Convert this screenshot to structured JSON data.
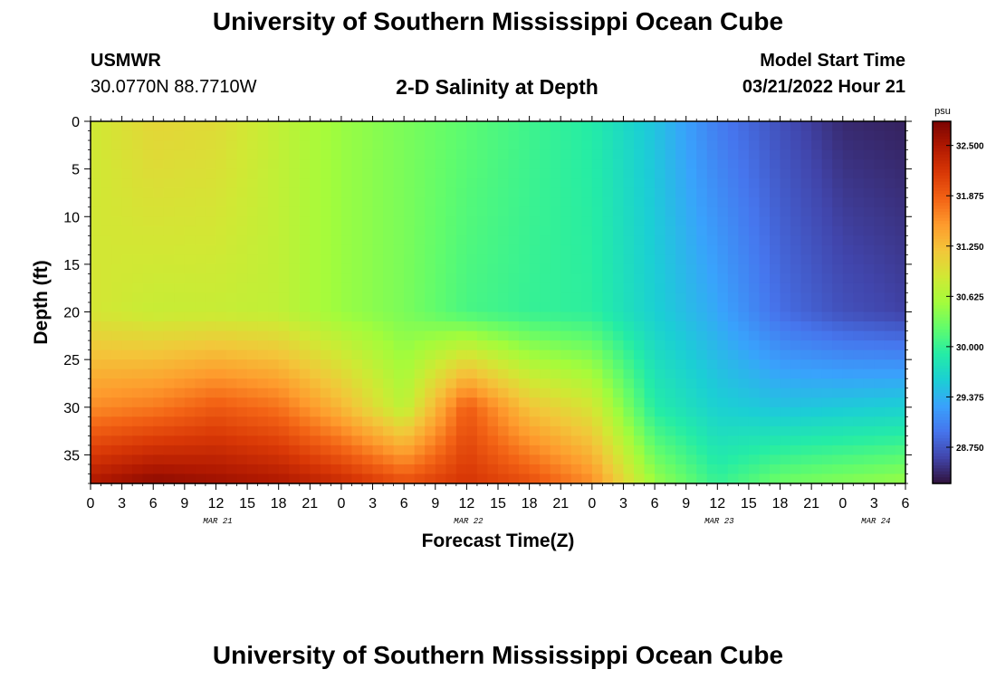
{
  "header": {
    "title": "University of Southern Mississippi Ocean Cube",
    "station": "USMWR",
    "coordinates": "30.0770N  88.7710W",
    "plot_title": "2-D Salinity at Depth",
    "model_start_label": "Model Start Time",
    "model_start_value": "03/21/2022 Hour 21"
  },
  "footer": {
    "title": "University of Southern Mississippi Ocean Cube"
  },
  "colors": {
    "background": "#ffffff",
    "text": "#000000"
  },
  "chart_data": {
    "type": "heatmap",
    "title": "2-D Salinity at Depth",
    "xlabel": "Forecast Time(Z)",
    "ylabel": "Depth (ft)",
    "x_ticks": [
      "0",
      "3",
      "6",
      "9",
      "12",
      "15",
      "18",
      "21",
      "0",
      "3",
      "6",
      "9",
      "12",
      "15",
      "18",
      "21",
      "0",
      "3",
      "6",
      "9",
      "12",
      "15",
      "18",
      "21",
      "0",
      "3",
      "6"
    ],
    "x_date_labels": [
      {
        "label": "MAR 21",
        "tick_index": 4
      },
      {
        "label": "MAR 22",
        "tick_index": 12
      },
      {
        "label": "MAR 23",
        "tick_index": 20
      },
      {
        "label": "MAR 24",
        "tick_index": 25
      }
    ],
    "y_ticks": [
      0,
      5,
      10,
      15,
      20,
      25,
      30,
      35
    ],
    "ylim": [
      0,
      38
    ],
    "xlim_hours": [
      0,
      78
    ],
    "colorbar": {
      "unit": "psu",
      "min": 28.3,
      "max": 32.8,
      "ticks": [
        "32.500",
        "31.875",
        "31.250",
        "30.625",
        "30.000",
        "29.375",
        "28.750"
      ],
      "tick_values": [
        32.5,
        31.875,
        31.25,
        30.625,
        30.0,
        29.375,
        28.75
      ],
      "colormap": [
        "#30123b",
        "#4145ab",
        "#4675ed",
        "#39a2fc",
        "#1bcfd4",
        "#24eca6",
        "#61fc6c",
        "#a4fc3b",
        "#d1e834",
        "#f3c63a",
        "#fe9b2d",
        "#f36315",
        "#d93806",
        "#b11901",
        "#7a0402"
      ]
    },
    "grid": false,
    "values_description_keys": [
      "depth_ft",
      "forecast_hour"
    ],
    "profile_samples": {
      "forecast_hours": [
        0,
        6,
        12,
        18,
        24,
        30,
        36,
        42,
        48,
        54,
        60,
        66,
        72,
        78
      ],
      "surface_psu": [
        30.85,
        31.05,
        31.0,
        30.75,
        30.5,
        30.35,
        30.2,
        30.05,
        29.9,
        29.5,
        29.0,
        28.7,
        28.45,
        28.4
      ],
      "depth20_psu": [
        30.9,
        30.8,
        30.8,
        30.75,
        30.5,
        30.35,
        30.1,
        30.0,
        29.95,
        29.6,
        29.3,
        28.9,
        28.7,
        28.6
      ],
      "depth30_psu": [
        31.6,
        31.7,
        31.9,
        31.75,
        31.3,
        30.7,
        31.9,
        31.2,
        30.9,
        29.9,
        29.6,
        29.5,
        29.55,
        29.6
      ],
      "depth38_psu": [
        32.5,
        32.7,
        32.6,
        32.5,
        32.3,
        32.0,
        32.2,
        32.0,
        31.6,
        30.5,
        30.0,
        30.3,
        30.4,
        30.5
      ]
    }
  }
}
